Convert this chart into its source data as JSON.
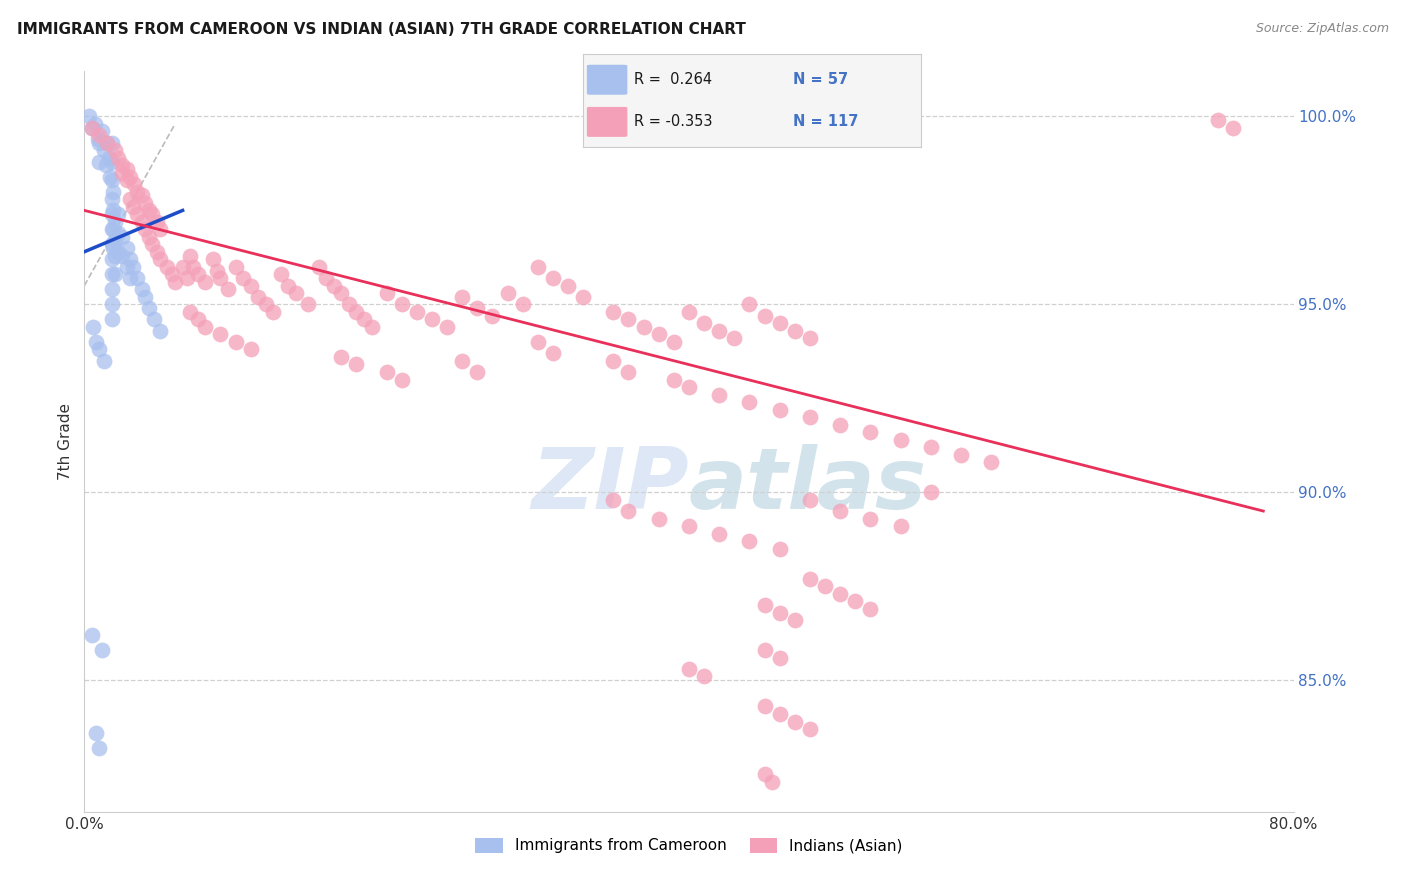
{
  "title": "IMMIGRANTS FROM CAMEROON VS INDIAN (ASIAN) 7TH GRADE CORRELATION CHART",
  "source": "Source: ZipAtlas.com",
  "ylabel": "7th Grade",
  "ytick_labels": [
    "100.0%",
    "95.0%",
    "90.0%",
    "85.0%"
  ],
  "ytick_values": [
    1.0,
    0.95,
    0.9,
    0.85
  ],
  "xlim": [
    0.0,
    0.8
  ],
  "ylim": [
    0.815,
    1.012
  ],
  "title_color": "#1a1a1a",
  "source_color": "#888888",
  "ylabel_color": "#333333",
  "ytick_color": "#4472c4",
  "grid_color": "#d0d0d0",
  "blue_color": "#a8c0ee",
  "pink_color": "#f4a0b8",
  "blue_line_color": "#1e4dc8",
  "pink_line_color": "#e8305a",
  "watermark_color": "#c8d8f0",
  "blue_scatter": [
    [
      0.003,
      1.0
    ],
    [
      0.005,
      0.997
    ],
    [
      0.007,
      0.998
    ],
    [
      0.009,
      0.994
    ],
    [
      0.01,
      0.993
    ],
    [
      0.01,
      0.988
    ],
    [
      0.012,
      0.996
    ],
    [
      0.013,
      0.991
    ],
    [
      0.014,
      0.987
    ],
    [
      0.015,
      0.993
    ],
    [
      0.016,
      0.989
    ],
    [
      0.017,
      0.984
    ],
    [
      0.018,
      0.993
    ],
    [
      0.018,
      0.988
    ],
    [
      0.018,
      0.983
    ],
    [
      0.018,
      0.978
    ],
    [
      0.018,
      0.974
    ],
    [
      0.018,
      0.97
    ],
    [
      0.018,
      0.966
    ],
    [
      0.018,
      0.962
    ],
    [
      0.018,
      0.958
    ],
    [
      0.018,
      0.954
    ],
    [
      0.018,
      0.95
    ],
    [
      0.018,
      0.946
    ],
    [
      0.019,
      0.98
    ],
    [
      0.019,
      0.975
    ],
    [
      0.019,
      0.97
    ],
    [
      0.019,
      0.965
    ],
    [
      0.02,
      0.972
    ],
    [
      0.02,
      0.967
    ],
    [
      0.02,
      0.963
    ],
    [
      0.02,
      0.958
    ],
    [
      0.022,
      0.974
    ],
    [
      0.022,
      0.969
    ],
    [
      0.022,
      0.964
    ],
    [
      0.025,
      0.968
    ],
    [
      0.025,
      0.963
    ],
    [
      0.028,
      0.965
    ],
    [
      0.028,
      0.96
    ],
    [
      0.03,
      0.962
    ],
    [
      0.03,
      0.957
    ],
    [
      0.032,
      0.96
    ],
    [
      0.035,
      0.957
    ],
    [
      0.038,
      0.954
    ],
    [
      0.04,
      0.952
    ],
    [
      0.043,
      0.949
    ],
    [
      0.046,
      0.946
    ],
    [
      0.05,
      0.943
    ],
    [
      0.006,
      0.944
    ],
    [
      0.008,
      0.94
    ],
    [
      0.01,
      0.938
    ],
    [
      0.013,
      0.935
    ],
    [
      0.005,
      0.862
    ],
    [
      0.012,
      0.858
    ],
    [
      0.008,
      0.836
    ],
    [
      0.01,
      0.832
    ]
  ],
  "pink_scatter": [
    [
      0.005,
      0.997
    ],
    [
      0.01,
      0.995
    ],
    [
      0.015,
      0.993
    ],
    [
      0.02,
      0.991
    ],
    [
      0.022,
      0.989
    ],
    [
      0.025,
      0.987
    ],
    [
      0.028,
      0.986
    ],
    [
      0.03,
      0.984
    ],
    [
      0.033,
      0.982
    ],
    [
      0.035,
      0.98
    ],
    [
      0.038,
      0.979
    ],
    [
      0.04,
      0.977
    ],
    [
      0.043,
      0.975
    ],
    [
      0.045,
      0.974
    ],
    [
      0.048,
      0.972
    ],
    [
      0.05,
      0.97
    ],
    [
      0.025,
      0.985
    ],
    [
      0.028,
      0.983
    ],
    [
      0.03,
      0.978
    ],
    [
      0.032,
      0.976
    ],
    [
      0.035,
      0.974
    ],
    [
      0.038,
      0.972
    ],
    [
      0.04,
      0.97
    ],
    [
      0.043,
      0.968
    ],
    [
      0.045,
      0.966
    ],
    [
      0.048,
      0.964
    ],
    [
      0.05,
      0.962
    ],
    [
      0.055,
      0.96
    ],
    [
      0.058,
      0.958
    ],
    [
      0.06,
      0.956
    ],
    [
      0.065,
      0.96
    ],
    [
      0.068,
      0.957
    ],
    [
      0.07,
      0.963
    ],
    [
      0.072,
      0.96
    ],
    [
      0.075,
      0.958
    ],
    [
      0.08,
      0.956
    ],
    [
      0.085,
      0.962
    ],
    [
      0.088,
      0.959
    ],
    [
      0.09,
      0.957
    ],
    [
      0.095,
      0.954
    ],
    [
      0.1,
      0.96
    ],
    [
      0.105,
      0.957
    ],
    [
      0.11,
      0.955
    ],
    [
      0.115,
      0.952
    ],
    [
      0.12,
      0.95
    ],
    [
      0.125,
      0.948
    ],
    [
      0.13,
      0.958
    ],
    [
      0.135,
      0.955
    ],
    [
      0.14,
      0.953
    ],
    [
      0.148,
      0.95
    ],
    [
      0.155,
      0.96
    ],
    [
      0.16,
      0.957
    ],
    [
      0.165,
      0.955
    ],
    [
      0.17,
      0.953
    ],
    [
      0.175,
      0.95
    ],
    [
      0.18,
      0.948
    ],
    [
      0.185,
      0.946
    ],
    [
      0.19,
      0.944
    ],
    [
      0.2,
      0.953
    ],
    [
      0.21,
      0.95
    ],
    [
      0.22,
      0.948
    ],
    [
      0.23,
      0.946
    ],
    [
      0.24,
      0.944
    ],
    [
      0.25,
      0.952
    ],
    [
      0.26,
      0.949
    ],
    [
      0.27,
      0.947
    ],
    [
      0.28,
      0.953
    ],
    [
      0.29,
      0.95
    ],
    [
      0.3,
      0.96
    ],
    [
      0.31,
      0.957
    ],
    [
      0.32,
      0.955
    ],
    [
      0.33,
      0.952
    ],
    [
      0.35,
      0.948
    ],
    [
      0.36,
      0.946
    ],
    [
      0.37,
      0.944
    ],
    [
      0.38,
      0.942
    ],
    [
      0.39,
      0.94
    ],
    [
      0.4,
      0.948
    ],
    [
      0.41,
      0.945
    ],
    [
      0.42,
      0.943
    ],
    [
      0.43,
      0.941
    ],
    [
      0.44,
      0.95
    ],
    [
      0.45,
      0.947
    ],
    [
      0.46,
      0.945
    ],
    [
      0.47,
      0.943
    ],
    [
      0.48,
      0.941
    ],
    [
      0.07,
      0.948
    ],
    [
      0.075,
      0.946
    ],
    [
      0.08,
      0.944
    ],
    [
      0.09,
      0.942
    ],
    [
      0.1,
      0.94
    ],
    [
      0.11,
      0.938
    ],
    [
      0.17,
      0.936
    ],
    [
      0.18,
      0.934
    ],
    [
      0.2,
      0.932
    ],
    [
      0.21,
      0.93
    ],
    [
      0.25,
      0.935
    ],
    [
      0.26,
      0.932
    ],
    [
      0.3,
      0.94
    ],
    [
      0.31,
      0.937
    ],
    [
      0.35,
      0.935
    ],
    [
      0.36,
      0.932
    ],
    [
      0.39,
      0.93
    ],
    [
      0.4,
      0.928
    ],
    [
      0.42,
      0.926
    ],
    [
      0.44,
      0.924
    ],
    [
      0.46,
      0.922
    ],
    [
      0.48,
      0.92
    ],
    [
      0.5,
      0.918
    ],
    [
      0.52,
      0.916
    ],
    [
      0.54,
      0.914
    ],
    [
      0.56,
      0.912
    ],
    [
      0.58,
      0.91
    ],
    [
      0.6,
      0.908
    ],
    [
      0.35,
      0.898
    ],
    [
      0.36,
      0.895
    ],
    [
      0.38,
      0.893
    ],
    [
      0.4,
      0.891
    ],
    [
      0.42,
      0.889
    ],
    [
      0.44,
      0.887
    ],
    [
      0.46,
      0.885
    ],
    [
      0.48,
      0.898
    ],
    [
      0.5,
      0.895
    ],
    [
      0.52,
      0.893
    ],
    [
      0.54,
      0.891
    ],
    [
      0.56,
      0.9
    ],
    [
      0.45,
      0.87
    ],
    [
      0.46,
      0.868
    ],
    [
      0.47,
      0.866
    ],
    [
      0.48,
      0.877
    ],
    [
      0.49,
      0.875
    ],
    [
      0.5,
      0.873
    ],
    [
      0.51,
      0.871
    ],
    [
      0.52,
      0.869
    ],
    [
      0.45,
      0.858
    ],
    [
      0.46,
      0.856
    ],
    [
      0.4,
      0.853
    ],
    [
      0.41,
      0.851
    ],
    [
      0.45,
      0.843
    ],
    [
      0.46,
      0.841
    ],
    [
      0.47,
      0.839
    ],
    [
      0.48,
      0.837
    ],
    [
      0.45,
      0.825
    ],
    [
      0.455,
      0.823
    ],
    [
      0.75,
      0.999
    ],
    [
      0.76,
      0.997
    ]
  ],
  "blue_trendline_x": [
    0.0,
    0.065
  ],
  "blue_trendline_y": [
    0.964,
    0.975
  ],
  "pink_trendline_x": [
    0.0,
    0.78
  ],
  "pink_trendline_y": [
    0.975,
    0.895
  ],
  "dashed_line_x": [
    0.0,
    0.06
  ],
  "dashed_line_y": [
    0.955,
    0.998
  ]
}
